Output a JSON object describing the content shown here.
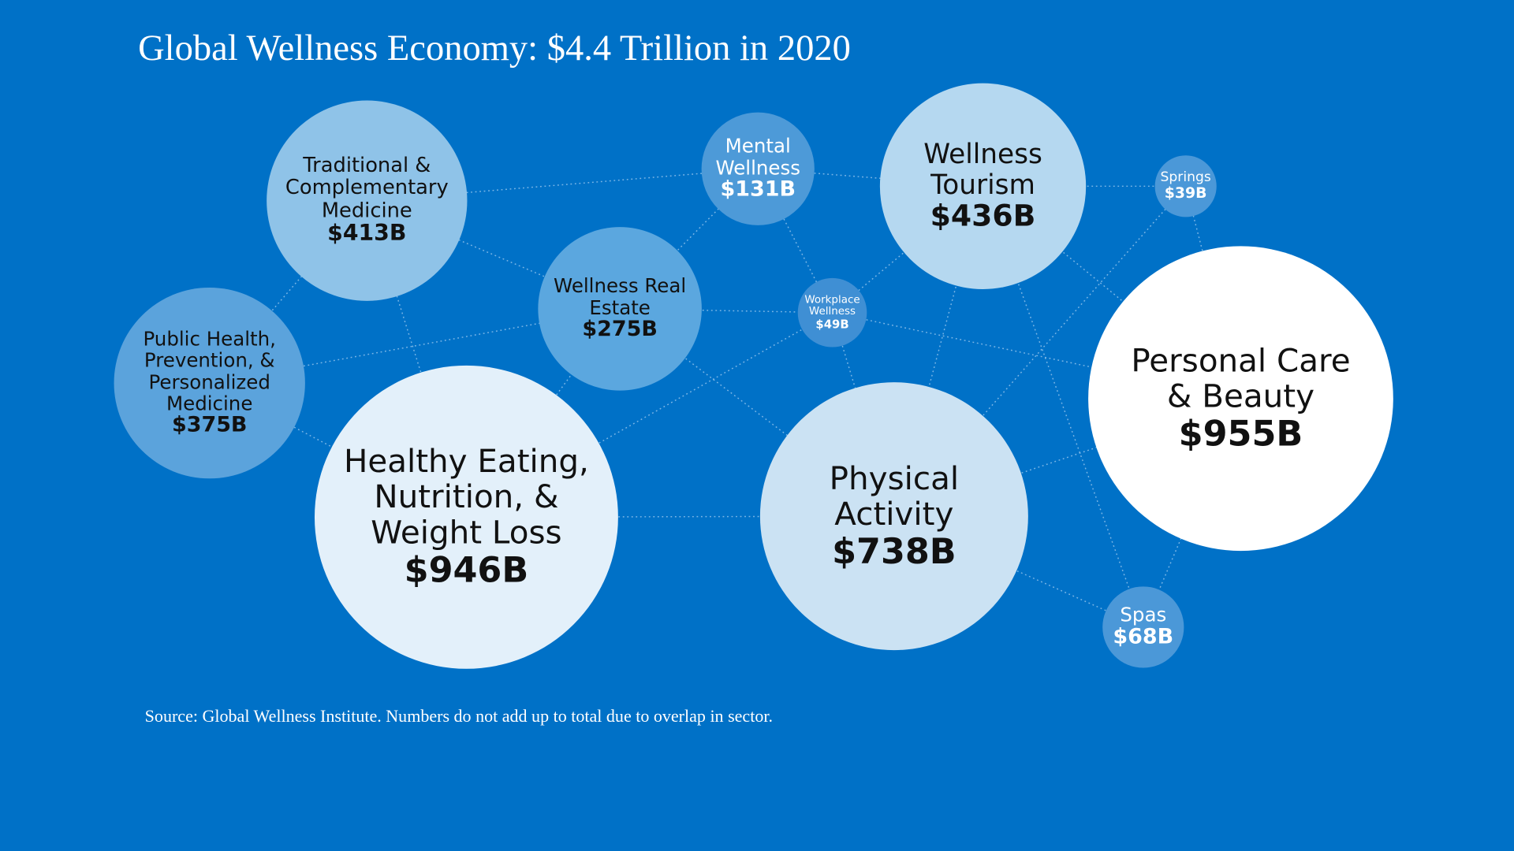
{
  "chart_data": {
    "type": "bubble",
    "title": "Global Wellness Economy: $4.4 Trillion in 2020",
    "categories": [
      "Traditional & Complementary Medicine",
      "Public Health, Prevention, & Personalized Medicine",
      "Healthy Eating, Nutrition, & Weight Loss",
      "Wellness Real Estate",
      "Mental Wellness",
      "Wellness Tourism",
      "Workplace Wellness",
      "Physical Activity",
      "Springs",
      "Personal Care & Beauty",
      "Spas"
    ],
    "values": [
      413,
      375,
      946,
      275,
      131,
      436,
      49,
      738,
      39,
      955,
      68
    ],
    "value_labels": [
      "$413B",
      "$375B",
      "$946B",
      "$275B",
      "$131B",
      "$436B",
      "$49B",
      "$738B",
      "$39B",
      "$955B",
      "$68B"
    ],
    "colors": [
      "#8fc3e8",
      "#5ba3dc",
      "#e3f0fa",
      "#5ba7df",
      "#4d9ad8",
      "#b5d8f0",
      "#3f8fd4",
      "#cbe2f3",
      "#4b98d8",
      "#ffffff",
      "#4b98d8"
    ],
    "note": "Source: Global Wellness Institute. Numbers do not add up to total due to overlap in sector."
  }
}
